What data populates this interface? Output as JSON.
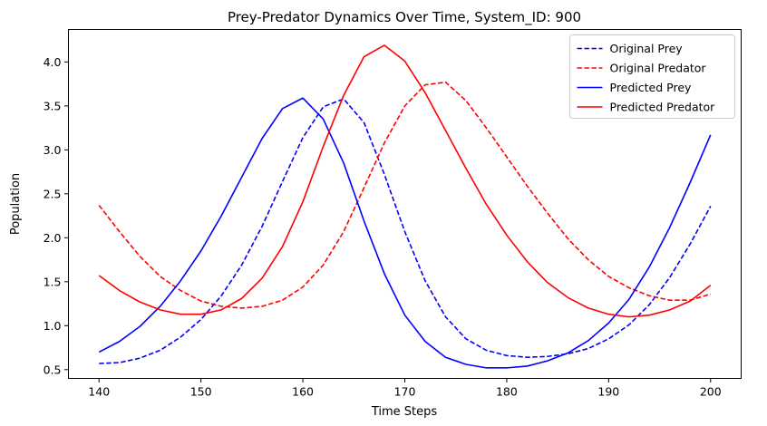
{
  "chart_data": {
    "type": "line",
    "title": "Prey-Predator Dynamics Over Time, System_ID: 900",
    "xlabel": "Time Steps",
    "ylabel": "Population",
    "xlim": [
      137,
      203
    ],
    "ylim": [
      0.4,
      4.37
    ],
    "xticks": [
      140,
      150,
      160,
      170,
      180,
      190,
      200
    ],
    "yticks": [
      0.5,
      1.0,
      1.5,
      2.0,
      2.5,
      3.0,
      3.5,
      4.0
    ],
    "x": [
      140,
      142,
      144,
      146,
      148,
      150,
      152,
      154,
      156,
      158,
      160,
      162,
      164,
      166,
      168,
      170,
      172,
      174,
      176,
      178,
      180,
      182,
      184,
      186,
      188,
      190,
      192,
      194,
      196,
      198,
      200
    ],
    "grid": false,
    "legend_position": "top-right",
    "series": [
      {
        "name": "Original Prey",
        "color": "#0000ff",
        "style": "dashed",
        "values": [
          0.57,
          0.58,
          0.63,
          0.72,
          0.87,
          1.07,
          1.34,
          1.69,
          2.13,
          2.64,
          3.14,
          3.49,
          3.58,
          3.31,
          2.72,
          2.07,
          1.51,
          1.1,
          0.85,
          0.72,
          0.66,
          0.64,
          0.65,
          0.68,
          0.74,
          0.85,
          1.01,
          1.24,
          1.55,
          1.93,
          2.36
        ]
      },
      {
        "name": "Original Predator",
        "color": "#ff0000",
        "style": "dashed",
        "values": [
          2.37,
          2.07,
          1.79,
          1.56,
          1.4,
          1.28,
          1.22,
          1.2,
          1.22,
          1.29,
          1.44,
          1.69,
          2.07,
          2.57,
          3.08,
          3.5,
          3.74,
          3.77,
          3.56,
          3.25,
          2.92,
          2.59,
          2.28,
          1.99,
          1.75,
          1.56,
          1.43,
          1.34,
          1.29,
          1.29,
          1.36
        ]
      },
      {
        "name": "Predicted Prey",
        "color": "#0000ff",
        "style": "solid",
        "values": [
          0.7,
          0.82,
          0.99,
          1.22,
          1.51,
          1.85,
          2.25,
          2.69,
          3.13,
          3.47,
          3.59,
          3.35,
          2.85,
          2.19,
          1.59,
          1.12,
          0.82,
          0.64,
          0.56,
          0.52,
          0.52,
          0.54,
          0.6,
          0.69,
          0.83,
          1.03,
          1.3,
          1.67,
          2.12,
          2.63,
          3.17
        ]
      },
      {
        "name": "Predicted Predator",
        "color": "#ff0000",
        "style": "solid",
        "values": [
          1.57,
          1.4,
          1.27,
          1.18,
          1.13,
          1.13,
          1.18,
          1.31,
          1.54,
          1.9,
          2.41,
          3.04,
          3.62,
          4.06,
          4.19,
          4.01,
          3.65,
          3.22,
          2.79,
          2.38,
          2.03,
          1.73,
          1.49,
          1.32,
          1.2,
          1.13,
          1.1,
          1.12,
          1.18,
          1.28,
          1.46
        ]
      }
    ]
  }
}
